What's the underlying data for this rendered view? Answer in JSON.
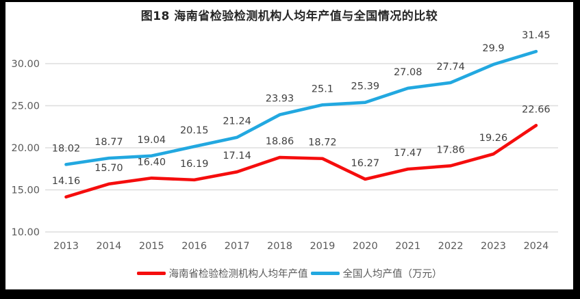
{
  "frame": {
    "border_color": "#000000",
    "panel_background": "#ffffff"
  },
  "chart_data": {
    "type": "line",
    "title": "图18  海南省检验检测机构人均年产值与全国情况的比较",
    "categories": [
      "2013",
      "2014",
      "2015",
      "2016",
      "2017",
      "2018",
      "2019",
      "2020",
      "2021",
      "2022",
      "2023",
      "2024"
    ],
    "series": [
      {
        "name": "海南省检验检测机构人均年产值",
        "color": "#f50d0d",
        "values": [
          14.16,
          15.7,
          16.4,
          16.19,
          17.14,
          18.86,
          18.72,
          16.27,
          17.47,
          17.86,
          19.26,
          22.66
        ],
        "labels": [
          "14.16",
          "15.70",
          "16.40",
          "16.19",
          "17.14",
          "18.86",
          "18.72",
          "16.27",
          "17.47",
          "17.86",
          "19.26",
          "22.66"
        ]
      },
      {
        "name": "全国人均产值（万元）",
        "color": "#22a8e0",
        "values": [
          18.02,
          18.77,
          19.04,
          20.15,
          21.24,
          23.93,
          25.1,
          25.39,
          27.08,
          27.74,
          29.9,
          31.45
        ],
        "labels": [
          "18.02",
          "18.77",
          "19.04",
          "20.15",
          "21.24",
          "23.93",
          "25.1",
          "25.39",
          "27.08",
          "27.74",
          "29.9",
          "31.45"
        ]
      }
    ],
    "xlabel": "",
    "ylabel": "",
    "ylim": [
      10,
      30
    ],
    "ytick_labels": [
      "10.00",
      "15.00",
      "20.00",
      "25.00",
      "30.00"
    ],
    "ytick_values": [
      10,
      15,
      20,
      25,
      30
    ],
    "grid": "horizontal",
    "gridline_color": "#dedede",
    "axis_text_color": "#595959",
    "data_label_color": "#3f3f3f",
    "legend_position": "bottom"
  }
}
